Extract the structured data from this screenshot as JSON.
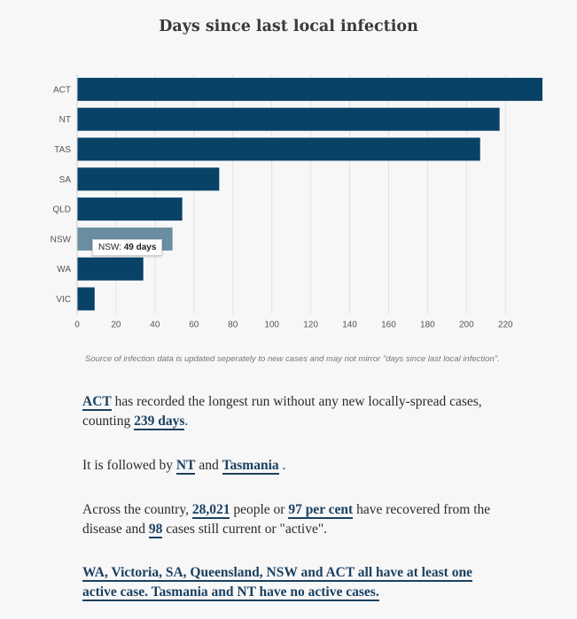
{
  "chart_data": {
    "type": "bar",
    "orientation": "horizontal",
    "title": "Days since last local infection",
    "categories": [
      "ACT",
      "NT",
      "TAS",
      "SA",
      "QLD",
      "NSW",
      "WA",
      "VIC"
    ],
    "values": [
      239,
      217,
      207,
      73,
      54,
      49,
      34,
      9
    ],
    "highlighted_category": "NSW",
    "x_ticks": [
      0,
      20,
      40,
      60,
      80,
      100,
      120,
      140,
      160,
      180,
      200,
      220
    ],
    "xlim": [
      0,
      239
    ],
    "xlabel": "",
    "ylabel": "",
    "grid": "vertical",
    "colors": {
      "bar": "#084266",
      "bar_highlight": "#6a8ea1",
      "grid": "#e2e2e2"
    }
  },
  "tooltip": {
    "label": "NSW:",
    "value": "49 days"
  },
  "source_note": "Source of infection data is updated seperately to new cases and may not mirror \"days since last local infection\".",
  "paragraphs": {
    "p1": {
      "link1": "ACT",
      "text1": " has recorded the longest run without any new locally-spread cases, counting ",
      "link2": "239 days",
      "text2": "."
    },
    "p2": {
      "text1": "It is followed by ",
      "link1": "NT",
      "text2": " and ",
      "link2": "Tasmania",
      "text3": " ."
    },
    "p3": {
      "text1": "Across the country, ",
      "link1": "28,021",
      "text2": " people or ",
      "link2": "97 per cent",
      "text3": " have recovered from the disease and ",
      "link3": "98",
      "text4": " cases still current or \"active\"."
    },
    "p4": {
      "link1": "WA, Victoria, SA, Queensland, NSW and ACT all have at least one active case. Tasmania and NT have no active cases."
    }
  }
}
